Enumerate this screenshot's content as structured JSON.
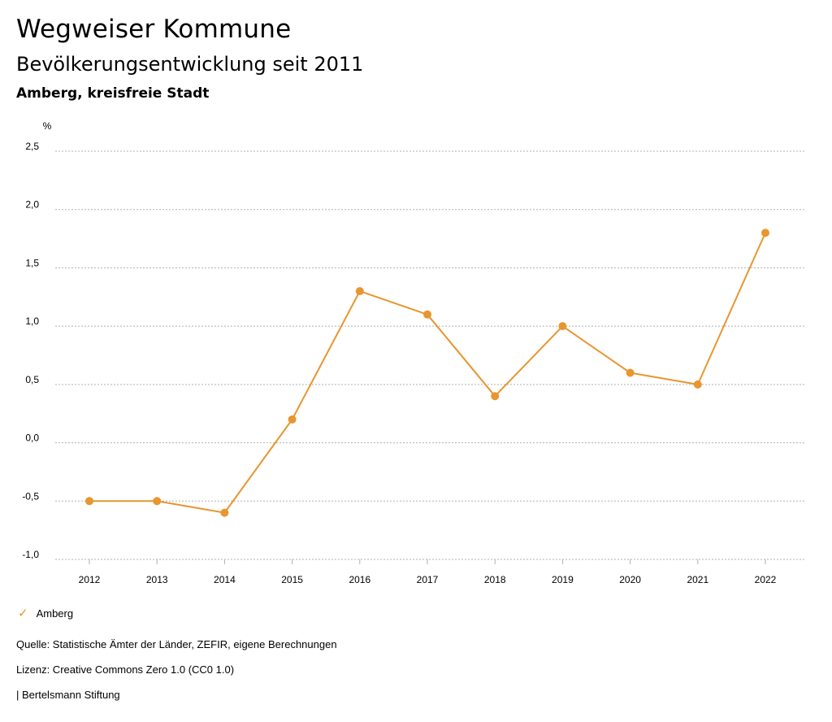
{
  "header": {
    "title": "Wegweiser Kommune",
    "subtitle": "Bevölkerungsentwicklung seit 2011",
    "region": "Amberg, kreisfreie Stadt"
  },
  "legend": {
    "label": "Amberg"
  },
  "footer": {
    "source": "Quelle: Statistische Ämter der Länder, ZEFIR, eigene Berechnungen",
    "license": "Lizenz: Creative Commons Zero 1.0 (CC0 1.0)",
    "publisher": "| Bertelsmann Stiftung"
  },
  "colors": {
    "series": "#e8962f",
    "grid": "#b0b0b0"
  },
  "chart_data": {
    "type": "line",
    "title": "",
    "xlabel": "",
    "ylabel": "%",
    "x": [
      "2012",
      "2013",
      "2014",
      "2015",
      "2016",
      "2017",
      "2018",
      "2019",
      "2020",
      "2021",
      "2022"
    ],
    "series": [
      {
        "name": "Amberg",
        "values": [
          -0.5,
          -0.5,
          -0.6,
          0.2,
          1.3,
          1.1,
          0.4,
          1.0,
          0.6,
          0.5,
          1.8
        ]
      }
    ],
    "ylim": [
      -1.0,
      2.5
    ],
    "yticks": [
      -1.0,
      -0.5,
      0.0,
      0.5,
      1.0,
      1.5,
      2.0,
      2.5
    ],
    "ytick_labels": [
      "-1,0",
      "-0,5",
      "0,0",
      "0,5",
      "1,0",
      "1,5",
      "2,0",
      "2,5"
    ],
    "grid": true,
    "legend_position": "bottom-left"
  }
}
